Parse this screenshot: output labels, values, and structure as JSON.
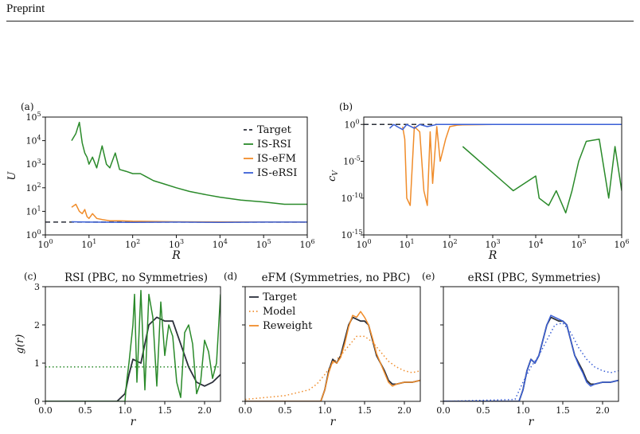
{
  "header": {
    "title": "Preprint"
  },
  "colors": {
    "target": "#2b2f3a",
    "rsi": "#2a8a2a",
    "efm": "#f08c2a",
    "ersi": "#3a5fd6"
  },
  "chart_data": [
    {
      "panel": "(a)",
      "type": "line",
      "title": "",
      "xlabel": "R",
      "ylabel": "U",
      "xscale": "log",
      "yscale": "log",
      "xlim": [
        1,
        1000000
      ],
      "ylim": [
        1,
        100000
      ],
      "xticks": [
        "10^0",
        "10^1",
        "10^2",
        "10^3",
        "10^4",
        "10^5",
        "10^6"
      ],
      "yticks": [
        "10^0",
        "10^1",
        "10^2",
        "10^3",
        "10^4",
        "10^5"
      ],
      "legend": {
        "placement": "top-right",
        "entries": [
          "Target",
          "IS-RSI",
          "IS-eFM",
          "IS-eRSI"
        ]
      },
      "series": [
        {
          "name": "Target",
          "style": "dashed",
          "x": [
            1,
            1000000
          ],
          "y": [
            3.5,
            3.5
          ]
        },
        {
          "name": "IS-RSI",
          "x": [
            4,
            5,
            6,
            7,
            8,
            9,
            10,
            12,
            15,
            20,
            25,
            30,
            40,
            50,
            70,
            100,
            150,
            200,
            300,
            500,
            1000,
            2000,
            5000,
            10000,
            30000,
            100000,
            300000,
            1000000
          ],
          "y": [
            10000,
            20000,
            60000,
            8000,
            3000,
            2000,
            1000,
            2000,
            700,
            6000,
            1000,
            700,
            3000,
            600,
            500,
            400,
            400,
            300,
            200,
            150,
            100,
            70,
            50,
            40,
            30,
            25,
            20,
            20
          ]
        },
        {
          "name": "IS-eFM",
          "x": [
            4,
            5,
            6,
            7,
            8,
            9,
            10,
            12,
            15,
            20,
            30,
            50,
            100,
            1000,
            1000000
          ],
          "y": [
            15,
            20,
            10,
            8,
            12,
            6,
            5,
            8,
            5,
            4.5,
            4,
            4,
            3.8,
            3.6,
            3.5
          ]
        },
        {
          "name": "IS-eRSI",
          "x": [
            4,
            10,
            100,
            1000,
            10000,
            100000,
            1000000
          ],
          "y": [
            3.6,
            3.5,
            3.4,
            3.5,
            3.4,
            3.5,
            3.5
          ]
        }
      ]
    },
    {
      "panel": "(b)",
      "type": "line",
      "title": "",
      "xlabel": "R",
      "ylabel": "c_V",
      "xscale": "log",
      "yscale": "log",
      "xlim": [
        1,
        1000000
      ],
      "ylim": [
        1e-15,
        10
      ],
      "xticks": [
        "10^0",
        "10^1",
        "10^2",
        "10^3",
        "10^4",
        "10^5",
        "10^6"
      ],
      "yticks": [
        "10^0",
        "10^-5",
        "10^-10",
        "10^-15"
      ],
      "series": [
        {
          "name": "Target",
          "style": "dashed",
          "x": [
            1,
            1000000
          ],
          "y": [
            1,
            1
          ]
        },
        {
          "name": "IS-RSI",
          "x": [
            200,
            3000,
            10000,
            12000,
            20000,
            30000,
            50000,
            70000,
            100000,
            150000,
            300000,
            500000,
            700000,
            1000000
          ],
          "y": [
            0.001,
            1e-09,
            1e-07,
            1e-10,
            1e-11,
            1e-09,
            1e-12,
            1e-09,
            1e-05,
            0.005,
            0.01,
            1e-10,
            0.001,
            1e-09
          ]
        },
        {
          "name": "IS-eFM",
          "x": [
            8,
            9,
            10,
            12,
            15,
            20,
            25,
            30,
            35,
            40,
            50,
            60,
            80,
            100,
            150,
            200,
            500,
            1000,
            10000,
            1000000
          ],
          "y": [
            0.5,
            0.01,
            1e-10,
            1e-11,
            0.5,
            0.1,
            1e-09,
            1e-11,
            0.1,
            1e-08,
            0.5,
            1e-05,
            0.01,
            0.5,
            0.8,
            0.9,
            0.95,
            1,
            1,
            1
          ]
        },
        {
          "name": "IS-eRSI",
          "x": [
            4,
            5,
            6,
            8,
            10,
            15,
            20,
            30,
            50,
            100,
            1000,
            100000,
            1000000
          ],
          "y": [
            0.3,
            1,
            0.5,
            0.2,
            1,
            0.3,
            1,
            0.5,
            1,
            1,
            1,
            1,
            1
          ]
        }
      ]
    },
    {
      "panel": "(c)",
      "type": "line",
      "title": "RSI (PBC, no Symmetries)",
      "xlabel": "r",
      "ylabel": "g(r)",
      "xlim": [
        0,
        2.2
      ],
      "ylim": [
        0,
        3
      ],
      "xticks": [
        "0.0",
        "0.5",
        "1.0",
        "1.5",
        "2.0"
      ],
      "yticks": [
        "0",
        "1",
        "2",
        "3"
      ],
      "series": [
        {
          "name": "Target",
          "x": [
            0,
            0.9,
            1.0,
            1.05,
            1.1,
            1.2,
            1.3,
            1.4,
            1.5,
            1.6,
            1.7,
            1.8,
            1.9,
            2.0,
            2.1,
            2.2
          ],
          "y": [
            0,
            0,
            0.2,
            0.7,
            1.1,
            1.0,
            2.0,
            2.2,
            2.1,
            2.1,
            1.5,
            0.9,
            0.5,
            0.4,
            0.5,
            0.7
          ]
        },
        {
          "name": "Model",
          "style": "dotted",
          "x": [
            0,
            2.2
          ],
          "y": [
            0.9,
            0.9
          ]
        },
        {
          "name": "Reweight",
          "x": [
            0,
            1.0,
            1.02,
            1.05,
            1.1,
            1.12,
            1.15,
            1.2,
            1.25,
            1.3,
            1.35,
            1.4,
            1.45,
            1.5,
            1.55,
            1.6,
            1.65,
            1.7,
            1.75,
            1.8,
            1.85,
            1.9,
            1.95,
            2.0,
            2.05,
            2.1,
            2.15,
            2.2
          ],
          "y": [
            0,
            0,
            0.5,
            1.0,
            2.0,
            2.8,
            0.5,
            2.9,
            0.3,
            2.8,
            2.2,
            0.4,
            2.6,
            1.2,
            2.0,
            1.7,
            0.5,
            0.1,
            1.8,
            2.0,
            1.5,
            0.2,
            0.5,
            1.6,
            1.3,
            0.6,
            1.0,
            2.8
          ]
        }
      ]
    },
    {
      "panel": "(d)",
      "type": "line",
      "title": "eFM (Symmetries, no PBC)",
      "xlabel": "r",
      "ylabel": "",
      "xlim": [
        0,
        2.2
      ],
      "ylim": [
        0,
        3
      ],
      "xticks": [
        "0.0",
        "0.5",
        "1.0",
        "1.5",
        "2.0"
      ],
      "legend": {
        "placement": "top-left",
        "entries": [
          "Target",
          "Model",
          "Reweight"
        ]
      },
      "series": [
        {
          "name": "Target",
          "x": [
            0,
            0.95,
            1.0,
            1.05,
            1.1,
            1.15,
            1.2,
            1.25,
            1.3,
            1.35,
            1.4,
            1.45,
            1.5,
            1.55,
            1.6,
            1.65,
            1.7,
            1.75,
            1.8,
            1.85,
            1.9,
            2.0,
            2.1,
            2.2
          ],
          "y": [
            0,
            0,
            0.3,
            0.8,
            1.1,
            1.0,
            1.2,
            1.6,
            2.0,
            2.2,
            2.15,
            2.1,
            2.1,
            2.0,
            1.6,
            1.2,
            1.0,
            0.8,
            0.55,
            0.45,
            0.45,
            0.5,
            0.5,
            0.55
          ]
        },
        {
          "name": "Model",
          "style": "dotted",
          "x": [
            0,
            0.5,
            0.8,
            0.9,
            1.0,
            1.1,
            1.2,
            1.3,
            1.4,
            1.5,
            1.6,
            1.7,
            1.8,
            1.9,
            2.0,
            2.1,
            2.2
          ],
          "y": [
            0.05,
            0.15,
            0.3,
            0.45,
            0.7,
            1.0,
            1.2,
            1.45,
            1.7,
            1.7,
            1.55,
            1.3,
            1.05,
            0.9,
            0.8,
            0.75,
            0.8
          ]
        },
        {
          "name": "Reweight",
          "x": [
            0,
            0.95,
            1.0,
            1.05,
            1.1,
            1.15,
            1.2,
            1.25,
            1.3,
            1.35,
            1.4,
            1.45,
            1.5,
            1.55,
            1.6,
            1.65,
            1.7,
            1.75,
            1.8,
            1.85,
            1.9,
            2.0,
            2.1,
            2.2
          ],
          "y": [
            0,
            0,
            0.3,
            0.75,
            1.05,
            1.0,
            1.15,
            1.5,
            1.95,
            2.25,
            2.2,
            2.35,
            2.2,
            2.0,
            1.65,
            1.25,
            1.0,
            0.75,
            0.5,
            0.4,
            0.45,
            0.5,
            0.5,
            0.55
          ]
        }
      ]
    },
    {
      "panel": "(e)",
      "type": "line",
      "title": "eRSI (PBC, Symmetries)",
      "xlabel": "r",
      "ylabel": "",
      "xlim": [
        0,
        2.2
      ],
      "ylim": [
        0,
        3
      ],
      "xticks": [
        "0.0",
        "0.5",
        "1.0",
        "1.5",
        "2.0"
      ],
      "series": [
        {
          "name": "Target",
          "x": [
            0,
            0.95,
            1.0,
            1.05,
            1.1,
            1.15,
            1.2,
            1.25,
            1.3,
            1.35,
            1.4,
            1.45,
            1.5,
            1.55,
            1.6,
            1.65,
            1.7,
            1.75,
            1.8,
            1.85,
            1.9,
            2.0,
            2.1,
            2.2
          ],
          "y": [
            0,
            0,
            0.3,
            0.8,
            1.1,
            1.0,
            1.2,
            1.6,
            2.0,
            2.2,
            2.15,
            2.1,
            2.1,
            2.0,
            1.6,
            1.2,
            1.0,
            0.8,
            0.55,
            0.45,
            0.45,
            0.5,
            0.5,
            0.55
          ]
        },
        {
          "name": "Model",
          "style": "dotted",
          "x": [
            0,
            0.9,
            1.0,
            1.1,
            1.2,
            1.3,
            1.4,
            1.5,
            1.6,
            1.7,
            1.8,
            1.9,
            2.0,
            2.1,
            2.2
          ],
          "y": [
            0,
            0.05,
            0.5,
            0.9,
            1.2,
            1.6,
            2.0,
            2.05,
            1.8,
            1.4,
            1.1,
            0.9,
            0.8,
            0.75,
            0.8
          ]
        },
        {
          "name": "Reweight",
          "x": [
            0,
            0.95,
            1.0,
            1.05,
            1.1,
            1.15,
            1.2,
            1.25,
            1.3,
            1.35,
            1.4,
            1.45,
            1.5,
            1.55,
            1.6,
            1.65,
            1.7,
            1.75,
            1.8,
            1.85,
            1.9,
            2.0,
            2.1,
            2.2
          ],
          "y": [
            0,
            0,
            0.3,
            0.8,
            1.1,
            1.0,
            1.2,
            1.6,
            2.0,
            2.25,
            2.2,
            2.15,
            2.1,
            2.0,
            1.6,
            1.2,
            0.95,
            0.75,
            0.5,
            0.4,
            0.45,
            0.5,
            0.5,
            0.55
          ]
        }
      ]
    }
  ]
}
